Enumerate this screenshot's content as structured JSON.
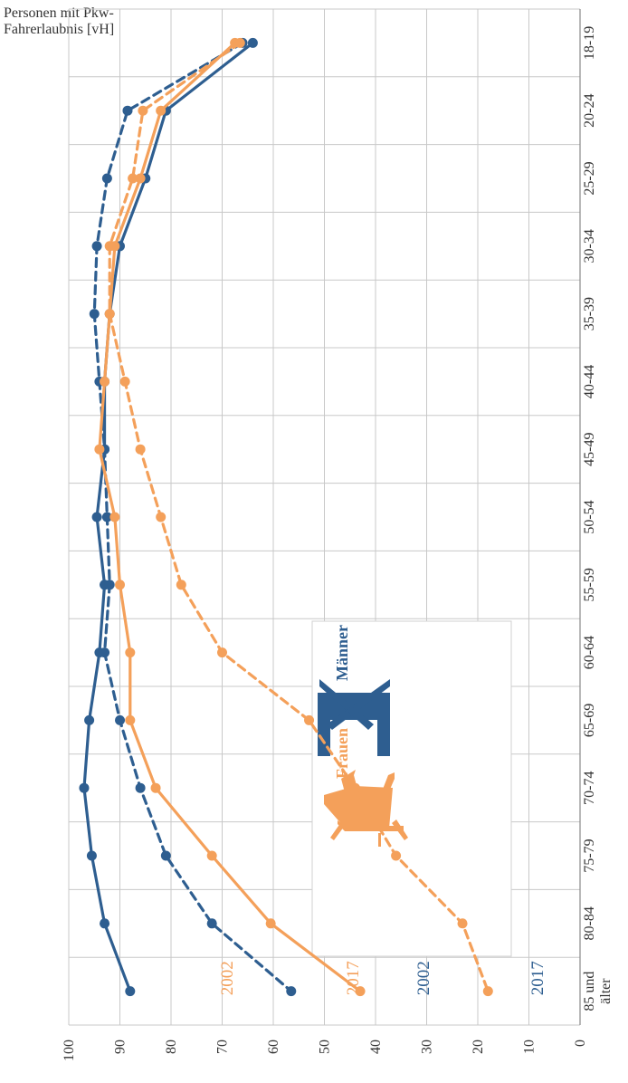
{
  "chart_data": {
    "type": "line",
    "ylabel_lines": [
      "Personen mit Pkw-",
      "Fahrerlaubnis [vH]"
    ],
    "categories": [
      "18-19",
      "20-24",
      "25-29",
      "30-34",
      "35-39",
      "40-44",
      "45-49",
      "50-54",
      "55-59",
      "60-64",
      "65-69",
      "70-74",
      "75-79",
      "80-84",
      [
        "85 und",
        "älter"
      ]
    ],
    "ylim": [
      0,
      100
    ],
    "yticks": [
      0,
      10,
      20,
      30,
      40,
      50,
      60,
      70,
      80,
      90,
      100
    ],
    "grid": true,
    "series": [
      {
        "name": "2017",
        "group": "Männer",
        "dashed": false,
        "color": "#2E5E90",
        "values": [
          64,
          81,
          85,
          90,
          92,
          93,
          93,
          94.5,
          93,
          94,
          96,
          97,
          95.5,
          93,
          88
        ]
      },
      {
        "name": "2002",
        "group": "Männer",
        "dashed": true,
        "color": "#2E5E90",
        "values": [
          66,
          88.5,
          92.5,
          94.5,
          95,
          94,
          93,
          92.5,
          92,
          93,
          90,
          86,
          81,
          72,
          56.5
        ]
      },
      {
        "name": "2017",
        "group": "Frauen",
        "dashed": false,
        "color": "#F4A05A",
        "values": [
          67.5,
          82,
          86,
          91,
          92,
          93,
          94,
          91,
          90,
          88,
          88,
          83,
          72,
          60.5,
          43
        ]
      },
      {
        "name": "2002",
        "group": "Frauen",
        "dashed": true,
        "color": "#F4A05A",
        "values": [
          66.5,
          85.5,
          87.5,
          92,
          92,
          89,
          86,
          82,
          78,
          70,
          53,
          44,
          36,
          23,
          18
        ]
      }
    ],
    "legend": {
      "items": [
        {
          "label": "Frauen",
          "color": "#F4A05A",
          "icon": "woman-icon"
        },
        {
          "label": "Männer",
          "color": "#2E5E90",
          "icon": "man-icon"
        }
      ]
    }
  }
}
